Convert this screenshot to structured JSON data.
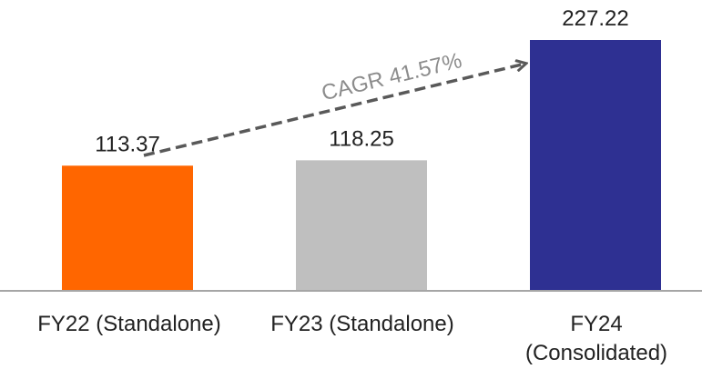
{
  "chart_data": {
    "type": "bar",
    "title": "",
    "xlabel": "",
    "ylabel": "",
    "categories": [
      {
        "lines": [
          "FY22 (Standalone)"
        ]
      },
      {
        "lines": [
          "FY23 (Standalone)"
        ]
      },
      {
        "lines": [
          "FY24",
          "(Consolidated)"
        ]
      }
    ],
    "values": [
      113.37,
      118.25,
      227.22
    ],
    "value_labels": [
      "113.37",
      "118.25",
      "227.22"
    ],
    "colors": [
      "#FF6600",
      "#BFBFBF",
      "#2E3092"
    ],
    "ylim": [
      0,
      227.22
    ],
    "annotation": {
      "text": "CAGR 41.57%",
      "from_category": 0,
      "to_category": 2,
      "style": "dashed-arrow",
      "color": "#595959"
    },
    "axis_color": "#A6A6A6",
    "grid": false,
    "legend": "none"
  }
}
